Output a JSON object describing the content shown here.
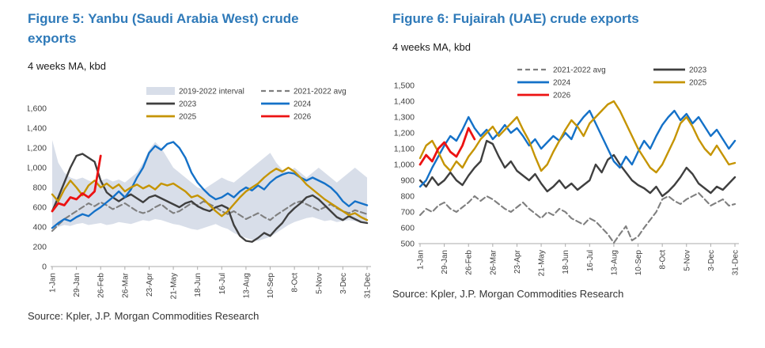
{
  "page": {
    "background": "#FFFFFF"
  },
  "figures": [
    {
      "title": "Figure 5: Yanbu (Saudi Arabia West) crude exports",
      "subtitle": "4 weeks MA, kbd",
      "source": "Source: Kpler, J.P. Morgan Commodities Research"
    },
    {
      "title": "Figure 6: Fujairah (UAE) crude exports",
      "subtitle": "4 weeks MA, kbd",
      "source": "Source: Kpler, J.P. Morgan Commodities Research"
    }
  ],
  "colors": {
    "title_blue": "#2F7AB9",
    "band": "#D8DEE9",
    "avg_gray": "#7F7F7F",
    "y2023": "#3F3F3F",
    "y2024": "#1471C8",
    "y2025": "#C59400",
    "y2026": "#EC1212",
    "axis": "#ABABAB",
    "tick_text": "#404040"
  },
  "chart_data": [
    {
      "type": "line",
      "title": "Figure 5: Yanbu (Saudi Arabia West) crude exports",
      "ylabel": "4 weeks MA, kbd",
      "xlabel": "",
      "ylim": [
        0,
        1600
      ],
      "y_step": 200,
      "grid": false,
      "points_per_year": 53,
      "x_frequency": "weekly (4-week moving average)",
      "x_tick_labels": [
        "1-Jan",
        "29-Jan",
        "26-Feb",
        "26-Mar",
        "23-Apr",
        "21-May",
        "18-Jun",
        "16-Jul",
        "13-Aug",
        "10-Sep",
        "8-Oct",
        "5-Nov",
        "3-Dec",
        "31-Dec"
      ],
      "legend_position": "top-right inside plot, two columns",
      "legend_columns": [
        [
          "2019-2022 interval",
          "2023",
          "2025"
        ],
        [
          "2021-2022 avg",
          "2024",
          "2026"
        ]
      ],
      "band": {
        "name": "2019-2022 interval",
        "color": "#D8DEE9",
        "lower": [
          380,
          400,
          420,
          410,
          430,
          440,
          420,
          430,
          440,
          420,
          430,
          450,
          440,
          430,
          450,
          470,
          460,
          480,
          470,
          450,
          430,
          420,
          400,
          380,
          370,
          390,
          410,
          430,
          400,
          380,
          340,
          310,
          290,
          270,
          260,
          280,
          300,
          340,
          380,
          420,
          450,
          470,
          490,
          500,
          480,
          460,
          470,
          450,
          460,
          470,
          460,
          450,
          440
        ],
        "upper": [
          1280,
          1050,
          950,
          900,
          880,
          900,
          870,
          850,
          870,
          890,
          860,
          880,
          850,
          900,
          950,
          1050,
          1180,
          1260,
          1200,
          1100,
          1000,
          950,
          900,
          850,
          800,
          780,
          820,
          860,
          900,
          870,
          850,
          900,
          950,
          1000,
          1050,
          1100,
          1150,
          1050,
          980,
          950,
          1000,
          950,
          900,
          950,
          1000,
          950,
          900,
          850,
          900,
          950,
          1000,
          950,
          900
        ]
      },
      "series": [
        {
          "name": "2021-2022 avg",
          "color": "#7F7F7F",
          "dash": true,
          "values": [
            360,
            420,
            480,
            520,
            560,
            600,
            640,
            610,
            650,
            620,
            580,
            610,
            640,
            600,
            560,
            540,
            560,
            600,
            630,
            580,
            540,
            560,
            600,
            640,
            620,
            660,
            630,
            600,
            560,
            530,
            560,
            520,
            480,
            510,
            540,
            500,
            470,
            520,
            560,
            600,
            640,
            660,
            630,
            600,
            570,
            600,
            630,
            590,
            560,
            540,
            570,
            550,
            530
          ]
        },
        {
          "name": "2023",
          "color": "#3F3F3F",
          "values": [
            560,
            700,
            850,
            1000,
            1120,
            1140,
            1100,
            1060,
            870,
            750,
            700,
            660,
            700,
            730,
            690,
            650,
            700,
            720,
            690,
            660,
            630,
            600,
            640,
            660,
            610,
            580,
            560,
            600,
            620,
            590,
            420,
            310,
            260,
            250,
            290,
            340,
            310,
            380,
            440,
            530,
            590,
            640,
            700,
            720,
            680,
            620,
            560,
            500,
            470,
            510,
            480,
            450,
            440
          ]
        },
        {
          "name": "2024",
          "color": "#1471C8",
          "values": [
            390,
            440,
            480,
            460,
            500,
            530,
            510,
            560,
            600,
            650,
            700,
            760,
            700,
            780,
            900,
            1000,
            1150,
            1220,
            1180,
            1240,
            1260,
            1200,
            1100,
            950,
            850,
            780,
            720,
            680,
            700,
            740,
            700,
            760,
            800,
            770,
            820,
            780,
            850,
            900,
            930,
            950,
            940,
            900,
            870,
            900,
            870,
            840,
            800,
            740,
            660,
            610,
            660,
            640,
            620
          ]
        },
        {
          "name": "2025",
          "color": "#C59400",
          "values": [
            730,
            660,
            780,
            870,
            800,
            720,
            820,
            870,
            800,
            840,
            790,
            830,
            760,
            800,
            830,
            790,
            820,
            780,
            840,
            820,
            840,
            800,
            760,
            700,
            720,
            680,
            620,
            560,
            510,
            560,
            630,
            700,
            760,
            800,
            840,
            900,
            950,
            990,
            960,
            1000,
            960,
            900,
            830,
            780,
            730,
            680,
            640,
            600,
            560,
            520,
            540,
            500,
            470
          ]
        },
        {
          "name": "2026",
          "color": "#EC1212",
          "width": 2.8,
          "values": [
            560,
            640,
            620,
            700,
            680,
            740,
            700,
            760,
            1120
          ]
        }
      ]
    },
    {
      "type": "line",
      "title": "Figure 6: Fujairah (UAE) crude exports",
      "ylabel": "4 weeks MA, kbd",
      "xlabel": "",
      "ylim": [
        500,
        1500
      ],
      "y_step": 100,
      "grid": false,
      "points_per_year": 53,
      "x_frequency": "weekly (4-week moving average)",
      "x_tick_labels": [
        "1-Jan",
        "29-Jan",
        "26-Feb",
        "26-Mar",
        "23-Apr",
        "21-May",
        "18-Jun",
        "16-Jul",
        "13-Aug",
        "10-Sep",
        "8-Oct",
        "5-Nov",
        "3-Dec",
        "31-Dec"
      ],
      "legend_position": "top center above plot, two columns",
      "legend_columns": [
        [
          "2021-2022 avg",
          "2024",
          "2026"
        ],
        [
          "2023",
          "2025"
        ]
      ],
      "series": [
        {
          "name": "2021-2022 avg",
          "color": "#7F7F7F",
          "dash": true,
          "values": [
            680,
            720,
            700,
            740,
            760,
            720,
            700,
            730,
            760,
            800,
            770,
            800,
            780,
            750,
            720,
            700,
            730,
            760,
            720,
            690,
            660,
            700,
            680,
            720,
            700,
            660,
            640,
            620,
            660,
            640,
            600,
            560,
            505,
            560,
            610,
            520,
            545,
            600,
            650,
            700,
            780,
            800,
            770,
            750,
            780,
            800,
            820,
            780,
            740,
            760,
            780,
            740,
            750
          ]
        },
        {
          "name": "2023",
          "color": "#3F3F3F",
          "values": [
            900,
            860,
            920,
            870,
            900,
            950,
            900,
            870,
            930,
            980,
            1020,
            1150,
            1130,
            1050,
            980,
            1020,
            960,
            930,
            900,
            940,
            880,
            830,
            860,
            900,
            850,
            880,
            840,
            870,
            900,
            1000,
            950,
            1030,
            1060,
            1000,
            950,
            900,
            870,
            850,
            820,
            860,
            800,
            830,
            870,
            920,
            980,
            940,
            880,
            850,
            820,
            860,
            840,
            880,
            920
          ]
        },
        {
          "name": "2024",
          "color": "#1471C8",
          "values": [
            860,
            900,
            980,
            1050,
            1120,
            1180,
            1150,
            1220,
            1300,
            1230,
            1180,
            1220,
            1160,
            1200,
            1250,
            1200,
            1230,
            1180,
            1120,
            1160,
            1100,
            1140,
            1180,
            1150,
            1200,
            1160,
            1250,
            1300,
            1340,
            1260,
            1180,
            1100,
            1020,
            980,
            1050,
            1000,
            1080,
            1150,
            1100,
            1180,
            1250,
            1300,
            1340,
            1280,
            1320,
            1260,
            1300,
            1240,
            1180,
            1220,
            1160,
            1100,
            1150
          ]
        },
        {
          "name": "2025",
          "color": "#C59400",
          "values": [
            1040,
            1120,
            1150,
            1080,
            1000,
            960,
            1020,
            980,
            1050,
            1100,
            1160,
            1200,
            1240,
            1180,
            1220,
            1260,
            1300,
            1220,
            1150,
            1050,
            960,
            1000,
            1080,
            1150,
            1220,
            1280,
            1240,
            1180,
            1260,
            1300,
            1340,
            1380,
            1400,
            1340,
            1260,
            1180,
            1100,
            1040,
            980,
            950,
            1000,
            1080,
            1160,
            1260,
            1300,
            1240,
            1160,
            1100,
            1060,
            1120,
            1060,
            1000,
            1010
          ]
        },
        {
          "name": "2026",
          "color": "#EC1212",
          "width": 2.8,
          "values": [
            1000,
            1060,
            1020,
            1100,
            1140,
            1080,
            1050,
            1120,
            1230,
            1160
          ]
        }
      ]
    }
  ]
}
